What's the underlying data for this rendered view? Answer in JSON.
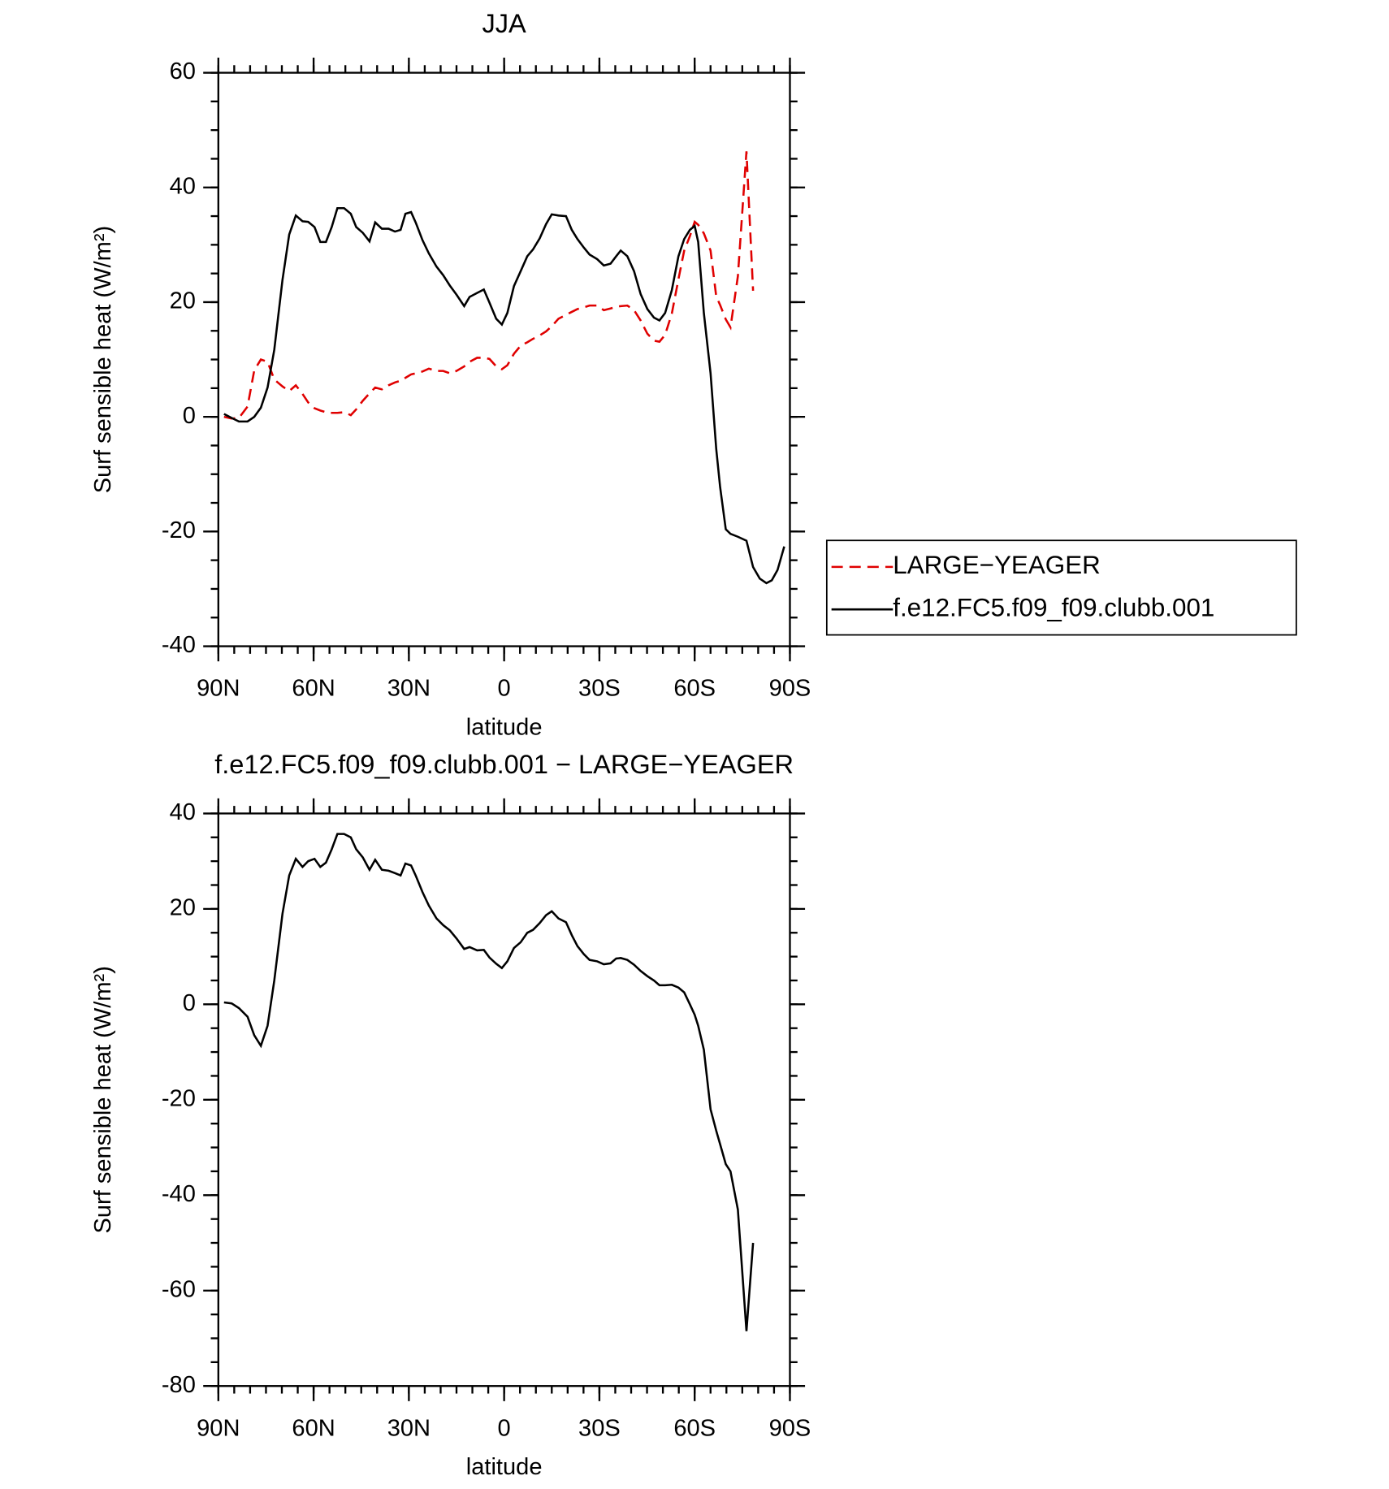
{
  "chart_data": [
    {
      "type": "line",
      "title": "JJA",
      "xlabel": "latitude",
      "ylabel": "Surf sensible heat (W/m²)",
      "x": [
        88.2,
        85.8,
        83.5,
        80.8,
        78.7,
        76.6,
        74.5,
        72.4,
        69.8,
        67.7,
        65.6,
        63.5,
        61.7,
        59.7,
        57.9,
        56.1,
        54.3,
        52.5,
        50.4,
        48.3,
        46.6,
        44.5,
        42.4,
        40.6,
        38.5,
        36.4,
        34.4,
        32.6,
        31.1,
        29.3,
        27.8,
        25.7,
        23.7,
        21.3,
        19.2,
        17.1,
        15.0,
        12.6,
        10.9,
        8.5,
        6.4,
        4.6,
        2.5,
        0.7,
        -1.0,
        -3.1,
        -5.2,
        -7.3,
        -9.1,
        -11.2,
        -13.2,
        -15.0,
        -17.1,
        -19.5,
        -21.3,
        -23.1,
        -25.1,
        -26.9,
        -29.3,
        -31.4,
        -33.5,
        -35.3,
        -36.7,
        -38.8,
        -40.9,
        -43.0,
        -45.1,
        -47.2,
        -48.9,
        -50.7,
        -52.8,
        -54.9,
        -56.7,
        -58.5,
        -60.0,
        -61.1,
        -62.9,
        -65.0,
        -66.8,
        -68.0,
        -69.8,
        -71.3,
        -73.6,
        -76.3,
        -78.4,
        -80.5,
        -82.6,
        -84.3,
        -86.1,
        -88.2
      ],
      "series": [
        {
          "name": "LARGE−YEAGER",
          "color": "#e00000",
          "style": "dashed",
          "values": [
            0,
            -0.3,
            -0.2,
            1.8,
            8.1,
            10,
            9.6,
            6.5,
            5.3,
            4.5,
            5.5,
            4,
            2.5,
            1.5,
            1.1,
            0.8,
            0.7,
            0.7,
            0.8,
            0.3,
            1.3,
            2.8,
            4.1,
            5.1,
            4.8,
            5.5,
            6.0,
            6.3,
            6.8,
            7.4,
            7.6,
            7.9,
            8.4,
            8.0,
            8.0,
            7.6,
            8.0,
            8.8,
            9.6,
            10.3,
            10.3,
            10.1,
            8.8,
            8.3,
            9.0,
            11.0,
            12.4,
            13.0,
            13.6,
            14.2,
            14.9,
            15.8,
            17.1,
            17.8,
            18.3,
            18.8,
            19.1,
            19.4,
            19.4,
            18.6,
            18.9,
            19.2,
            19.3,
            19.4,
            18.6,
            16.8,
            14.5,
            13.3,
            13.1,
            14.3,
            18.0,
            24.0,
            29.0,
            31.5,
            34.0,
            33.5,
            32.0,
            29.0,
            21.0,
            19.5,
            17.0,
            15.6,
            24.5,
            46.3,
            22.0,
            null,
            null,
            null,
            null,
            null
          ]
        },
        {
          "name": "f.e12.FC5.f09_f09.clubb.001",
          "color": "#000000",
          "style": "solid",
          "values": [
            0.5,
            -0.2,
            -0.8,
            -0.8,
            0,
            1.6,
            5.1,
            11.7,
            23.9,
            31.8,
            35.1,
            34.1,
            34.0,
            33.1,
            30.5,
            30.5,
            33.1,
            36.4,
            36.4,
            35.4,
            33.1,
            32.1,
            30.6,
            33.9,
            32.8,
            32.8,
            32.3,
            32.6,
            35.4,
            35.7,
            33.8,
            30.8,
            28.5,
            26.2,
            24.7,
            22.9,
            21.3,
            19.3,
            20.9,
            21.6,
            22.2,
            19.9,
            17.1,
            16.1,
            18.1,
            22.8,
            25.4,
            28.0,
            29.2,
            31.1,
            33.6,
            35.3,
            35.1,
            35.0,
            32.6,
            31.0,
            29.5,
            28.3,
            27.5,
            26.4,
            26.7,
            28.0,
            29.0,
            28.0,
            25.4,
            21.4,
            18.8,
            17.3,
            16.8,
            18.1,
            22.1,
            28.0,
            31.0,
            32.6,
            33.3,
            30.5,
            18.1,
            7.6,
            -5.6,
            -12.2,
            -19.6,
            -20.4,
            -20.9,
            -21.6,
            -26.2,
            -28.2,
            -29.0,
            -28.5,
            -26.7,
            -22.6
          ]
        }
      ],
      "xlim": [
        90,
        -90
      ],
      "xticks": [
        {
          "value": 90,
          "label": "90N"
        },
        {
          "value": 60,
          "label": "60N"
        },
        {
          "value": 30,
          "label": "30N"
        },
        0,
        {
          "value": -30,
          "label": "30S"
        },
        {
          "value": -60,
          "label": "60S"
        },
        {
          "value": -90,
          "label": "90S"
        }
      ],
      "ylim": [
        -40,
        60
      ],
      "yticks": [
        -40,
        -20,
        0,
        20,
        40,
        60
      ],
      "legend": "right"
    },
    {
      "type": "line",
      "title": "f.e12.FC5.f09_f09.clubb.001 − LARGE−YEAGER",
      "xlabel": "latitude",
      "ylabel": "Surf sensible heat (W/m²)",
      "x": [
        88.2,
        85.8,
        83.5,
        80.8,
        78.7,
        76.6,
        74.5,
        72.4,
        69.8,
        67.7,
        65.6,
        63.5,
        61.7,
        59.7,
        57.9,
        56.1,
        54.3,
        52.5,
        50.4,
        48.3,
        46.6,
        44.5,
        42.4,
        40.6,
        38.5,
        36.4,
        34.4,
        32.6,
        31.1,
        29.3,
        27.8,
        25.7,
        23.7,
        21.3,
        19.2,
        17.1,
        15.0,
        12.6,
        10.9,
        8.5,
        6.4,
        4.6,
        2.5,
        0.7,
        -1.0,
        -3.1,
        -5.2,
        -7.3,
        -9.1,
        -11.2,
        -13.2,
        -15.0,
        -17.1,
        -19.5,
        -21.3,
        -23.1,
        -25.1,
        -26.9,
        -29.3,
        -31.4,
        -33.5,
        -35.3,
        -36.7,
        -38.8,
        -40.9,
        -43.0,
        -45.1,
        -47.2,
        -48.9,
        -50.7,
        -52.8,
        -54.9,
        -56.7,
        -58.5,
        -60.0,
        -61.1,
        -62.9,
        -65.0,
        -66.8,
        -68.0,
        -69.8,
        -71.3,
        -73.6,
        -76.3,
        -78.4,
        -80.5,
        -82.6,
        -84.3,
        -86.1,
        -88.2
      ],
      "values": [
        0.4,
        0.2,
        -0.8,
        -2.6,
        -6.5,
        -8.7,
        -4.5,
        5,
        19,
        27,
        30.5,
        28.8,
        30,
        30.5,
        28.8,
        29.7,
        32.5,
        35.7,
        35.7,
        35,
        32.5,
        30.8,
        28.2,
        30.3,
        28.2,
        28,
        27.5,
        27,
        29.5,
        29.1,
        26.9,
        23.5,
        20.7,
        18,
        16.6,
        15.5,
        13.8,
        11.6,
        12,
        11.3,
        11.4,
        9.8,
        8.5,
        7.6,
        9,
        11.8,
        13,
        15,
        15.6,
        17,
        18.7,
        19.5,
        18,
        17.2,
        14.5,
        12.2,
        10.5,
        9.3,
        9,
        8.4,
        8.6,
        9.6,
        9.7,
        9.3,
        8.3,
        7.0,
        5.9,
        5.0,
        4.0,
        4.0,
        4.1,
        3.5,
        2.5,
        0,
        -2.2,
        -4.5,
        -9.5,
        -22,
        -26.5,
        -29.3,
        -33.5,
        -35,
        -43,
        -68.5,
        -50,
        null,
        null,
        null,
        null,
        null
      ],
      "color": "#000000",
      "style": "solid",
      "xlim": [
        90,
        -90
      ],
      "xticks": [
        {
          "value": 90,
          "label": "90N"
        },
        {
          "value": 60,
          "label": "60N"
        },
        {
          "value": 30,
          "label": "30N"
        },
        0,
        {
          "value": -30,
          "label": "30S"
        },
        {
          "value": -60,
          "label": "60S"
        },
        {
          "value": -90,
          "label": "90S"
        }
      ],
      "ylim": [
        -80,
        40
      ],
      "yticks": [
        -80,
        -60,
        -40,
        -20,
        0,
        20,
        40
      ]
    }
  ]
}
